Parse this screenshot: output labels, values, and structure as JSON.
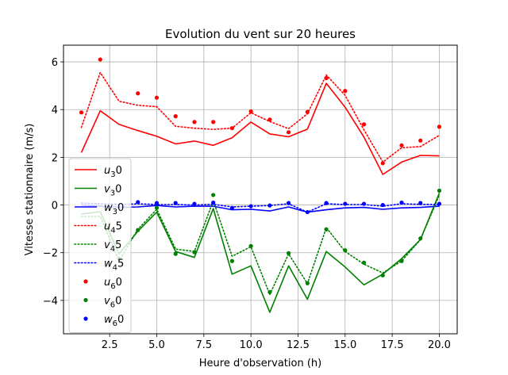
{
  "chart_data": {
    "type": "line",
    "title": "Evolution du vent sur 20 heures",
    "xlabel": "Heure d'observation (h)",
    "ylabel": "Vitesse stationnaire (m/s)",
    "xlim": [
      0.05,
      20.95
    ],
    "ylim": [
      -5.4,
      6.7
    ],
    "xticks": [
      2.5,
      5.0,
      7.5,
      10.0,
      12.5,
      15.0,
      17.5,
      20.0
    ],
    "xtick_labels": [
      "2.5",
      "5.0",
      "7.5",
      "10.0",
      "12.5",
      "15.0",
      "17.5",
      "20.0"
    ],
    "yticks": [
      -4,
      -2,
      0,
      2,
      4,
      6
    ],
    "ytick_labels": [
      "−4",
      "−2",
      "0",
      "2",
      "4",
      "6"
    ],
    "grid": true,
    "legend_position": "lower-left",
    "x": [
      1,
      2,
      3,
      4,
      5,
      6,
      7,
      8,
      9,
      10,
      11,
      12,
      13,
      14,
      15,
      16,
      17,
      18,
      19,
      20
    ],
    "series": [
      {
        "name": "u",
        "sub": "3",
        "sup": "0",
        "style": "solid",
        "color": "#ff0000",
        "values": [
          2.2,
          3.95,
          3.38,
          3.12,
          2.88,
          2.56,
          2.68,
          2.5,
          2.82,
          3.48,
          2.98,
          2.86,
          3.18,
          5.1,
          4.1,
          2.85,
          1.28,
          1.8,
          2.08,
          2.06
        ]
      },
      {
        "name": "v",
        "sub": "3",
        "sup": "0",
        "style": "solid",
        "color": "#008000",
        "values": [
          -0.38,
          -0.28,
          -2.05,
          -1.1,
          -0.3,
          -1.95,
          -2.2,
          -0.15,
          -2.9,
          -2.55,
          -4.5,
          -2.55,
          -3.95,
          -1.95,
          -2.6,
          -3.35,
          -2.9,
          -2.25,
          -1.45,
          0.5
        ]
      },
      {
        "name": "w",
        "sub": "3",
        "sup": "0",
        "style": "solid",
        "color": "#0000ff",
        "values": [
          0.0,
          -0.05,
          -0.1,
          -0.08,
          -0.02,
          -0.08,
          -0.05,
          -0.05,
          -0.2,
          -0.18,
          -0.25,
          -0.08,
          -0.3,
          -0.2,
          -0.12,
          -0.1,
          -0.18,
          -0.12,
          -0.1,
          -0.05
        ]
      },
      {
        "name": "u",
        "sub": "4",
        "sup": "5",
        "style": "dotted",
        "color": "#ff0000",
        "values": [
          3.25,
          5.55,
          4.35,
          4.18,
          4.12,
          3.3,
          3.22,
          3.17,
          3.22,
          3.87,
          3.5,
          3.2,
          3.82,
          5.45,
          4.6,
          3.15,
          1.8,
          2.4,
          2.45,
          2.92
        ]
      },
      {
        "name": "v",
        "sub": "4",
        "sup": "5",
        "style": "dotted",
        "color": "#008000",
        "values": [
          -0.48,
          -0.48,
          -2.35,
          -1.02,
          -0.18,
          -1.85,
          -1.95,
          0.18,
          -2.15,
          -1.75,
          -3.75,
          -2.05,
          -3.3,
          -0.95,
          -1.95,
          -2.48,
          -2.85,
          -2.35,
          -1.45,
          0.42
        ]
      },
      {
        "name": "w",
        "sub": "4",
        "sup": "5",
        "style": "dotted",
        "color": "#0000ff",
        "values": [
          0.08,
          0.05,
          0.02,
          0.05,
          0.02,
          0.02,
          0.0,
          0.03,
          -0.08,
          -0.05,
          -0.02,
          0.05,
          -0.3,
          0.05,
          0.02,
          0.02,
          -0.05,
          0.05,
          0.03,
          0.02
        ]
      },
      {
        "name": "u",
        "sub": "6",
        "sup": "0",
        "style": "marker",
        "color": "#ff0000",
        "values": [
          3.88,
          6.1,
          null,
          4.68,
          4.5,
          3.72,
          3.48,
          3.48,
          3.22,
          3.92,
          3.58,
          3.05,
          3.9,
          5.32,
          4.78,
          3.38,
          1.75,
          2.5,
          2.7,
          3.28
        ]
      },
      {
        "name": "v",
        "sub": "6",
        "sup": "0",
        "style": "marker",
        "color": "#008000",
        "values": [
          null,
          null,
          -2.25,
          -1.05,
          -0.12,
          -2.05,
          -1.98,
          0.42,
          -2.35,
          -1.72,
          -3.65,
          -2.02,
          -3.28,
          -1.02,
          -1.9,
          -2.42,
          -2.95,
          -2.35,
          -1.4,
          0.6
        ]
      },
      {
        "name": "w",
        "sub": "6",
        "sup": "0",
        "style": "marker",
        "color": "#0000ff",
        "values": [
          null,
          null,
          null,
          0.12,
          0.08,
          0.08,
          0.05,
          0.1,
          -0.12,
          -0.05,
          -0.02,
          0.08,
          -0.3,
          0.08,
          0.05,
          0.05,
          0.0,
          0.1,
          0.08,
          0.05
        ]
      }
    ]
  }
}
